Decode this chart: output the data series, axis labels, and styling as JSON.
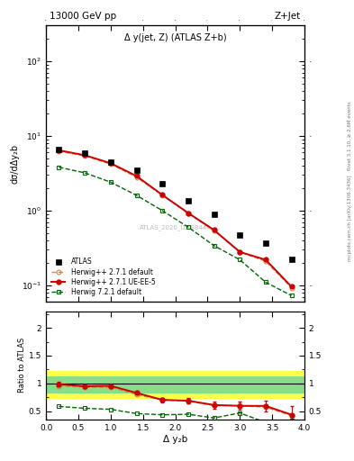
{
  "title_left": "13000 GeV pp",
  "title_right": "Z+Jet",
  "panel_title": "Δ y(jet, Z) (ATLAS Z+b)",
  "watermark": "ATLAS_2020_I1788444",
  "right_label_top": "Rivet 3.1.10, ≥ 2.6M events",
  "right_label_bottom": "mcplots.cern.ch [arXiv:1306.3436]",
  "ylabel_main": "dσ/dΔy₂b",
  "ylabel_ratio": "Ratio to ATLAS",
  "xlabel": "Δ y₂b",
  "ylim_main": [
    0.06,
    300
  ],
  "ylim_ratio": [
    0.35,
    2.3
  ],
  "xlim": [
    0.0,
    4.0
  ],
  "atlas_x": [
    0.2,
    0.6,
    1.0,
    1.4,
    1.8,
    2.2,
    2.6,
    3.0,
    3.4,
    3.8
  ],
  "atlas_y": [
    6.5,
    5.8,
    4.5,
    3.5,
    2.3,
    1.35,
    0.9,
    0.47,
    0.37,
    0.22
  ],
  "hw271_default_x": [
    0.2,
    0.6,
    1.0,
    1.4,
    1.8,
    2.2,
    2.6,
    3.0,
    3.4,
    3.8
  ],
  "hw271_default_y": [
    6.2,
    5.4,
    4.2,
    2.8,
    1.6,
    0.92,
    0.54,
    0.28,
    0.21,
    0.093
  ],
  "hw271_ueee5_x": [
    0.2,
    0.6,
    1.0,
    1.4,
    1.8,
    2.2,
    2.6,
    3.0,
    3.4,
    3.8
  ],
  "hw271_ueee5_y": [
    6.4,
    5.5,
    4.3,
    2.9,
    1.62,
    0.93,
    0.55,
    0.28,
    0.22,
    0.096
  ],
  "hw721_default_x": [
    0.2,
    0.6,
    1.0,
    1.4,
    1.8,
    2.2,
    2.6,
    3.0,
    3.4,
    3.8
  ],
  "hw721_default_y": [
    3.8,
    3.2,
    2.4,
    1.6,
    1.0,
    0.6,
    0.34,
    0.22,
    0.11,
    0.073
  ],
  "ratio_hw271_default_x": [
    0.2,
    0.6,
    1.0,
    1.4,
    1.8,
    2.2,
    2.6,
    3.0,
    3.4,
    3.8
  ],
  "ratio_hw271_default_y": [
    0.955,
    0.93,
    0.93,
    0.8,
    0.7,
    0.68,
    0.6,
    0.6,
    0.57,
    0.42
  ],
  "ratio_hw271_ueee5_x": [
    0.2,
    0.6,
    1.0,
    1.4,
    1.8,
    2.2,
    2.6,
    3.0,
    3.4,
    3.8
  ],
  "ratio_hw271_ueee5_y": [
    0.985,
    0.948,
    0.956,
    0.829,
    0.704,
    0.689,
    0.611,
    0.596,
    0.595,
    0.436
  ],
  "ratio_hw271_ueee5_yerr": [
    0.04,
    0.03,
    0.03,
    0.03,
    0.04,
    0.05,
    0.06,
    0.07,
    0.1,
    0.15
  ],
  "ratio_hw721_default_x": [
    0.2,
    0.6,
    1.0,
    1.4,
    1.8,
    2.2,
    2.6,
    3.0,
    3.4,
    3.8
  ],
  "ratio_hw721_default_y": [
    0.585,
    0.552,
    0.533,
    0.457,
    0.435,
    0.444,
    0.378,
    0.468,
    0.297,
    0.332
  ],
  "band_x_edges": [
    0.0,
    0.4,
    0.8,
    1.2,
    1.6,
    2.0,
    2.4,
    2.8,
    3.2,
    3.6,
    4.0
  ],
  "band_yellow_low": [
    0.72,
    0.72,
    0.72,
    0.72,
    0.72,
    0.72,
    0.72,
    0.72,
    0.72,
    0.72
  ],
  "band_yellow_high": [
    1.22,
    1.22,
    1.22,
    1.22,
    1.22,
    1.22,
    1.22,
    1.22,
    1.22,
    1.22
  ],
  "band_green_low": [
    0.82,
    0.82,
    0.82,
    0.82,
    0.82,
    0.82,
    0.82,
    0.82,
    0.82,
    0.82
  ],
  "band_green_high": [
    1.12,
    1.12,
    1.12,
    1.12,
    1.12,
    1.12,
    1.12,
    1.12,
    1.12,
    1.12
  ],
  "color_atlas": "#000000",
  "color_hw271_default": "#cc8844",
  "color_hw271_ueee5": "#cc0000",
  "color_hw721_default": "#006600",
  "color_band_yellow": "#ffff44",
  "color_band_green": "#88dd88",
  "bg_color": "#ffffff"
}
